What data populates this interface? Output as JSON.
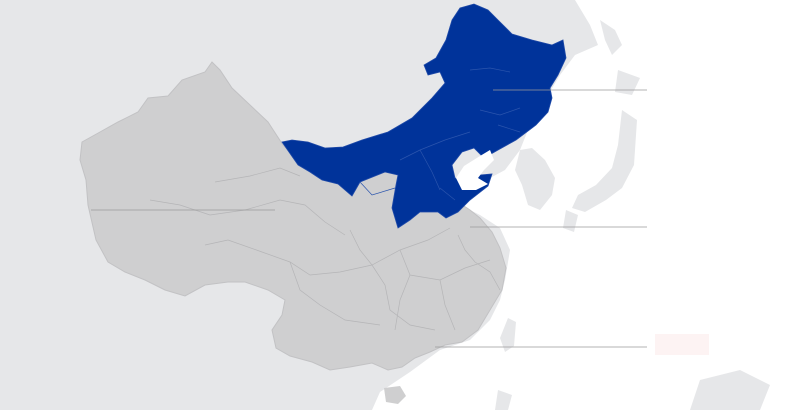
{
  "colors": {
    "sea": "#ffffff",
    "neighbor_land": "#e6e7e9",
    "country_fill": "#cfcfd0",
    "province_border": "#b5b5b7",
    "highlight": "#00339a",
    "leader_line": "#9a9a9a",
    "label_box": "#fdf3f3"
  },
  "map": {
    "highlighted_region": "north",
    "callouts": [
      {
        "id": "north-region",
        "text": ""
      },
      {
        "id": "east-region",
        "text": ""
      },
      {
        "id": "west-region",
        "text": ""
      },
      {
        "id": "south-region",
        "text": ""
      }
    ]
  }
}
